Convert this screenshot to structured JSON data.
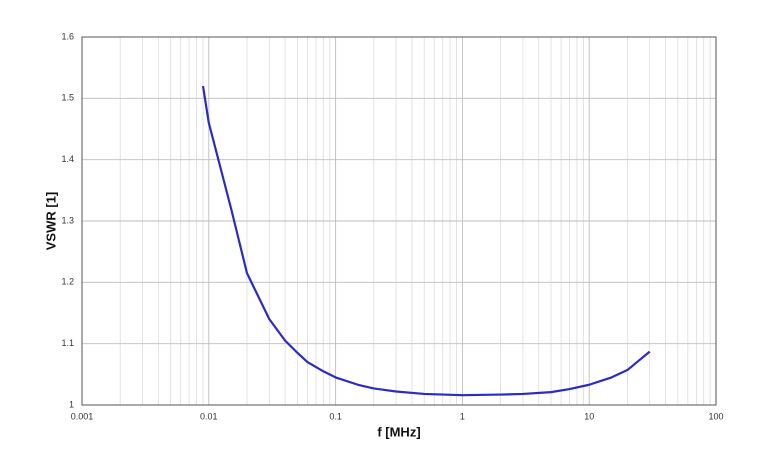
{
  "chart_data": {
    "type": "line",
    "xlabel": "f [MHz]",
    "ylabel": "VSWR [1]",
    "x": [
      0.009,
      0.01,
      0.015,
      0.02,
      0.03,
      0.04,
      0.05,
      0.06,
      0.08,
      0.1,
      0.15,
      0.2,
      0.3,
      0.5,
      1,
      2,
      3,
      5,
      7,
      10,
      15,
      20,
      30
    ],
    "values": [
      1.52,
      1.46,
      1.32,
      1.215,
      1.14,
      1.105,
      1.085,
      1.07,
      1.055,
      1.045,
      1.033,
      1.027,
      1.022,
      1.018,
      1.016,
      1.017,
      1.018,
      1.021,
      1.026,
      1.033,
      1.045,
      1.057,
      1.087
    ],
    "color": "#2b2bc4",
    "xscale": "log",
    "xlim": [
      0.001,
      100
    ],
    "xticks": [
      0.001,
      0.01,
      0.1,
      1,
      10,
      100
    ],
    "ylim": [
      1,
      1.6
    ],
    "yticks": [
      1,
      1.1,
      1.2,
      1.3,
      1.4,
      1.5,
      1.6
    ],
    "grid": true,
    "minor_grid": true
  }
}
